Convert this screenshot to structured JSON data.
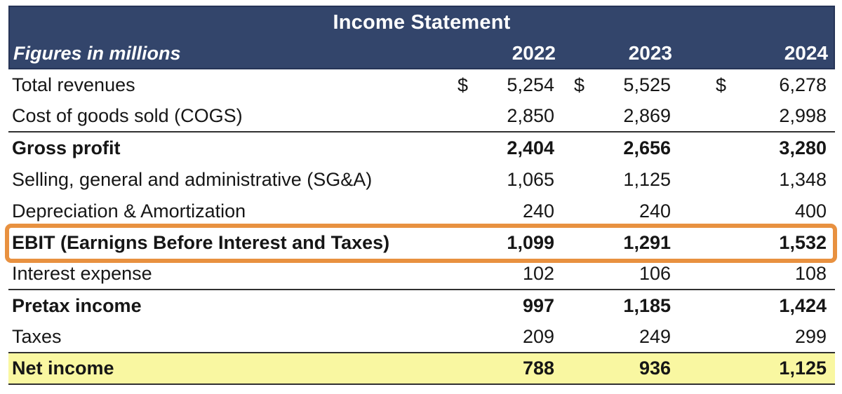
{
  "table": {
    "title": "Income Statement",
    "subtitle": "Figures in millions",
    "currency_symbol": "$",
    "years": [
      "2022",
      "2023",
      "2024"
    ],
    "rows": [
      {
        "label": "Total revenues",
        "values": [
          "5,254",
          "5,525",
          "6,278"
        ]
      },
      {
        "label": "Cost of goods sold (COGS)",
        "values": [
          "2,850",
          "2,869",
          "2,998"
        ]
      },
      {
        "label": "Gross profit",
        "values": [
          "2,404",
          "2,656",
          "3,280"
        ]
      },
      {
        "label": "Selling, general and administrative (SG&A)",
        "values": [
          "1,065",
          "1,125",
          "1,348"
        ]
      },
      {
        "label": "Depreciation & Amortization",
        "values": [
          "240",
          "240",
          "400"
        ]
      },
      {
        "label": "EBIT (Earnigns Before Interest and Taxes)",
        "values": [
          "1,099",
          "1,291",
          "1,532"
        ]
      },
      {
        "label": "Interest expense",
        "values": [
          "102",
          "106",
          "108"
        ]
      },
      {
        "label": "Pretax income",
        "values": [
          "997",
          "1,185",
          "1,424"
        ]
      },
      {
        "label": "Taxes",
        "values": [
          "209",
          "249",
          "299"
        ]
      },
      {
        "label": "Net income",
        "values": [
          "788",
          "936",
          "1,125"
        ]
      }
    ]
  },
  "colors": {
    "header_navy": "#33456B",
    "header_border": "#263457",
    "ebit_outline_orange": "#E89140",
    "net_income_yellow": "#F9F7A1",
    "rule_dark": "#303030"
  },
  "chart_data": {
    "type": "table",
    "title": "Income Statement",
    "subtitle": "Figures in millions",
    "columns": [
      "2022",
      "2023",
      "2024"
    ],
    "rows": [
      {
        "label": "Total revenues",
        "values": [
          5254,
          5525,
          6278
        ],
        "style": "normal, $ prefix shown"
      },
      {
        "label": "Cost of goods sold (COGS)",
        "values": [
          2850,
          2869,
          2998
        ],
        "style": "normal, rule below"
      },
      {
        "label": "Gross profit",
        "values": [
          2404,
          2656,
          3280
        ],
        "style": "bold"
      },
      {
        "label": "Selling, general and administrative (SG&A)",
        "values": [
          1065,
          1125,
          1348
        ],
        "style": "normal"
      },
      {
        "label": "Depreciation & Amortization",
        "values": [
          240,
          240,
          400
        ],
        "style": "normal"
      },
      {
        "label": "EBIT (Earnigns Before Interest and Taxes)",
        "values": [
          1099,
          1291,
          1532
        ],
        "style": "bold, orange rounded outline"
      },
      {
        "label": "Interest expense",
        "values": [
          102,
          106,
          108
        ],
        "style": "normal, rule below"
      },
      {
        "label": "Pretax income",
        "values": [
          997,
          1185,
          1424
        ],
        "style": "bold"
      },
      {
        "label": "Taxes",
        "values": [
          209,
          249,
          299
        ],
        "style": "normal, rule below"
      },
      {
        "label": "Net income",
        "values": [
          788,
          936,
          1125
        ],
        "style": "bold, yellow highlight, rule below"
      }
    ],
    "layout": {
      "header_fill": "navy",
      "unit": "millions USD",
      "values_right_aligned": true
    }
  }
}
